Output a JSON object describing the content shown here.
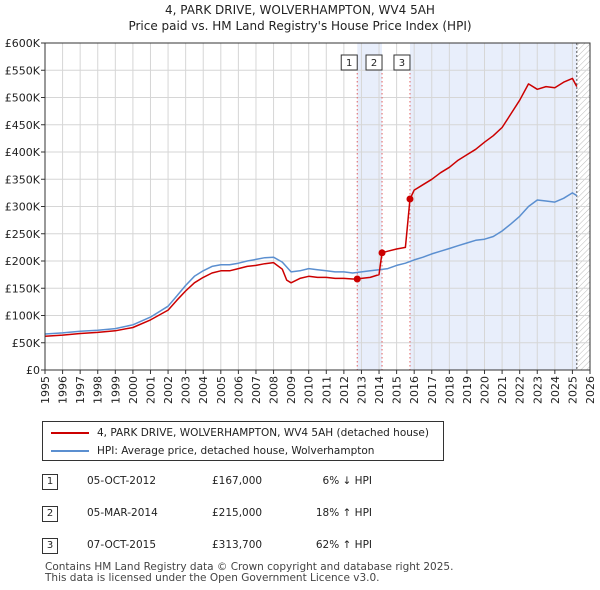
{
  "header": {
    "title": "4, PARK DRIVE, WOLVERHAMPTON, WV4 5AH",
    "subtitle": "Price paid vs. HM Land Registry's House Price Index (HPI)"
  },
  "legend": {
    "property_label": "4, PARK DRIVE, WOLVERHAMPTON, WV4 5AH (detached house)",
    "hpi_label": "HPI: Average price, detached house, Wolverhampton"
  },
  "colors": {
    "property": "#cc0000",
    "hpi": "#5b8fd0",
    "shade": "#e8eefb",
    "grid": "#d6d6d6"
  },
  "transactions": [
    {
      "num": "1",
      "date": "05-OCT-2012",
      "price": "£167,000",
      "hpi": "6% ↓ HPI"
    },
    {
      "num": "2",
      "date": "05-MAR-2014",
      "price": "£215,000",
      "hpi": "18% ↑ HPI"
    },
    {
      "num": "3",
      "date": "07-OCT-2015",
      "price": "£313,700",
      "hpi": "62% ↑ HPI"
    }
  ],
  "footer": {
    "line1": "Contains HM Land Registry data © Crown copyright and database right 2025.",
    "line2": "This data is licensed under the Open Government Licence v3.0."
  },
  "chart_data": {
    "type": "line",
    "title": "4, PARK DRIVE, WOLVERHAMPTON, WV4 5AH",
    "subtitle": "Price paid vs. HM Land Registry's House Price Index (HPI)",
    "xlabel": "",
    "ylabel": "",
    "xlim": [
      1995,
      2026
    ],
    "ylim": [
      0,
      600000
    ],
    "x_ticks": [
      1995,
      1996,
      1997,
      1998,
      1999,
      2000,
      2001,
      2002,
      2003,
      2004,
      2005,
      2006,
      2007,
      2008,
      2009,
      2010,
      2011,
      2012,
      2013,
      2014,
      2015,
      2016,
      2017,
      2018,
      2019,
      2020,
      2021,
      2022,
      2023,
      2024,
      2025,
      2026
    ],
    "y_ticks": [
      0,
      50000,
      100000,
      150000,
      200000,
      250000,
      300000,
      350000,
      400000,
      450000,
      500000,
      550000,
      600000
    ],
    "y_tick_labels": [
      "£0",
      "£50K",
      "£100K",
      "£150K",
      "£200K",
      "£250K",
      "£300K",
      "£350K",
      "£400K",
      "£450K",
      "£500K",
      "£550K",
      "£600K"
    ],
    "grid": true,
    "series": [
      {
        "name": "4, PARK DRIVE, WOLVERHAMPTON, WV4 5AH (detached house)",
        "x": [
          1995.0,
          1996.0,
          1997.0,
          1998.0,
          1999.0,
          2000.0,
          2001.0,
          2002.0,
          2002.5,
          2003.0,
          2003.5,
          2004.0,
          2004.5,
          2005.0,
          2005.5,
          2006.0,
          2006.5,
          2007.0,
          2007.5,
          2008.0,
          2008.5,
          2008.75,
          2009.0,
          2009.5,
          2010.0,
          2010.5,
          2011.0,
          2011.5,
          2012.0,
          2012.5,
          2012.76,
          2013.0,
          2013.5,
          2014.0,
          2014.17,
          2014.5,
          2015.0,
          2015.5,
          2015.76,
          2016.0,
          2016.5,
          2017.0,
          2017.5,
          2018.0,
          2018.5,
          2019.0,
          2019.5,
          2020.0,
          2020.5,
          2021.0,
          2021.5,
          2022.0,
          2022.5,
          2023.0,
          2023.5,
          2024.0,
          2024.5,
          2025.0,
          2025.25
        ],
        "values": [
          62000,
          64000,
          67000,
          69000,
          72000,
          78000,
          92000,
          110000,
          128000,
          145000,
          160000,
          170000,
          178000,
          182000,
          182000,
          186000,
          190000,
          192000,
          195000,
          197000,
          185000,
          165000,
          160000,
          168000,
          172000,
          170000,
          170000,
          168000,
          168000,
          167000,
          167000,
          168000,
          170000,
          175000,
          215000,
          218000,
          222000,
          225000,
          313700,
          330000,
          340000,
          350000,
          362000,
          372000,
          385000,
          395000,
          405000,
          418000,
          430000,
          445000,
          470000,
          495000,
          525000,
          515000,
          520000,
          518000,
          528000,
          535000,
          520000
        ]
      },
      {
        "name": "HPI: Average price, detached house, Wolverhampton",
        "x": [
          1995.0,
          1996.0,
          1997.0,
          1998.0,
          1999.0,
          2000.0,
          2001.0,
          2002.0,
          2002.5,
          2003.0,
          2003.5,
          2004.0,
          2004.5,
          2005.0,
          2005.5,
          2006.0,
          2006.5,
          2007.0,
          2007.5,
          2008.0,
          2008.5,
          2009.0,
          2009.5,
          2010.0,
          2010.5,
          2011.0,
          2011.5,
          2012.0,
          2012.5,
          2013.0,
          2013.5,
          2014.0,
          2014.5,
          2015.0,
          2015.5,
          2016.0,
          2016.5,
          2017.0,
          2017.5,
          2018.0,
          2018.5,
          2019.0,
          2019.5,
          2020.0,
          2020.5,
          2021.0,
          2021.5,
          2022.0,
          2022.5,
          2023.0,
          2023.5,
          2024.0,
          2024.5,
          2025.0,
          2025.25
        ],
        "values": [
          66000,
          68000,
          71000,
          73000,
          76000,
          83000,
          97000,
          117000,
          136000,
          155000,
          172000,
          182000,
          190000,
          193000,
          193000,
          196000,
          200000,
          203000,
          206000,
          207000,
          198000,
          180000,
          182000,
          186000,
          184000,
          182000,
          180000,
          180000,
          178000,
          180000,
          182000,
          184000,
          186000,
          192000,
          196000,
          202000,
          207000,
          213000,
          218000,
          223000,
          228000,
          233000,
          238000,
          240000,
          245000,
          255000,
          268000,
          282000,
          300000,
          312000,
          310000,
          308000,
          315000,
          325000,
          320000
        ]
      }
    ],
    "annotations": [
      {
        "label": "1",
        "x": 2012.76,
        "y": 167000
      },
      {
        "label": "2",
        "x": 2014.17,
        "y": 215000
      },
      {
        "label": "3",
        "x": 2015.76,
        "y": 313700
      }
    ],
    "shaded_ranges": [
      [
        2012.76,
        2014.17
      ],
      [
        2015.76,
        2025.25
      ]
    ],
    "hatched_range": [
      2025.25,
      2026
    ]
  }
}
